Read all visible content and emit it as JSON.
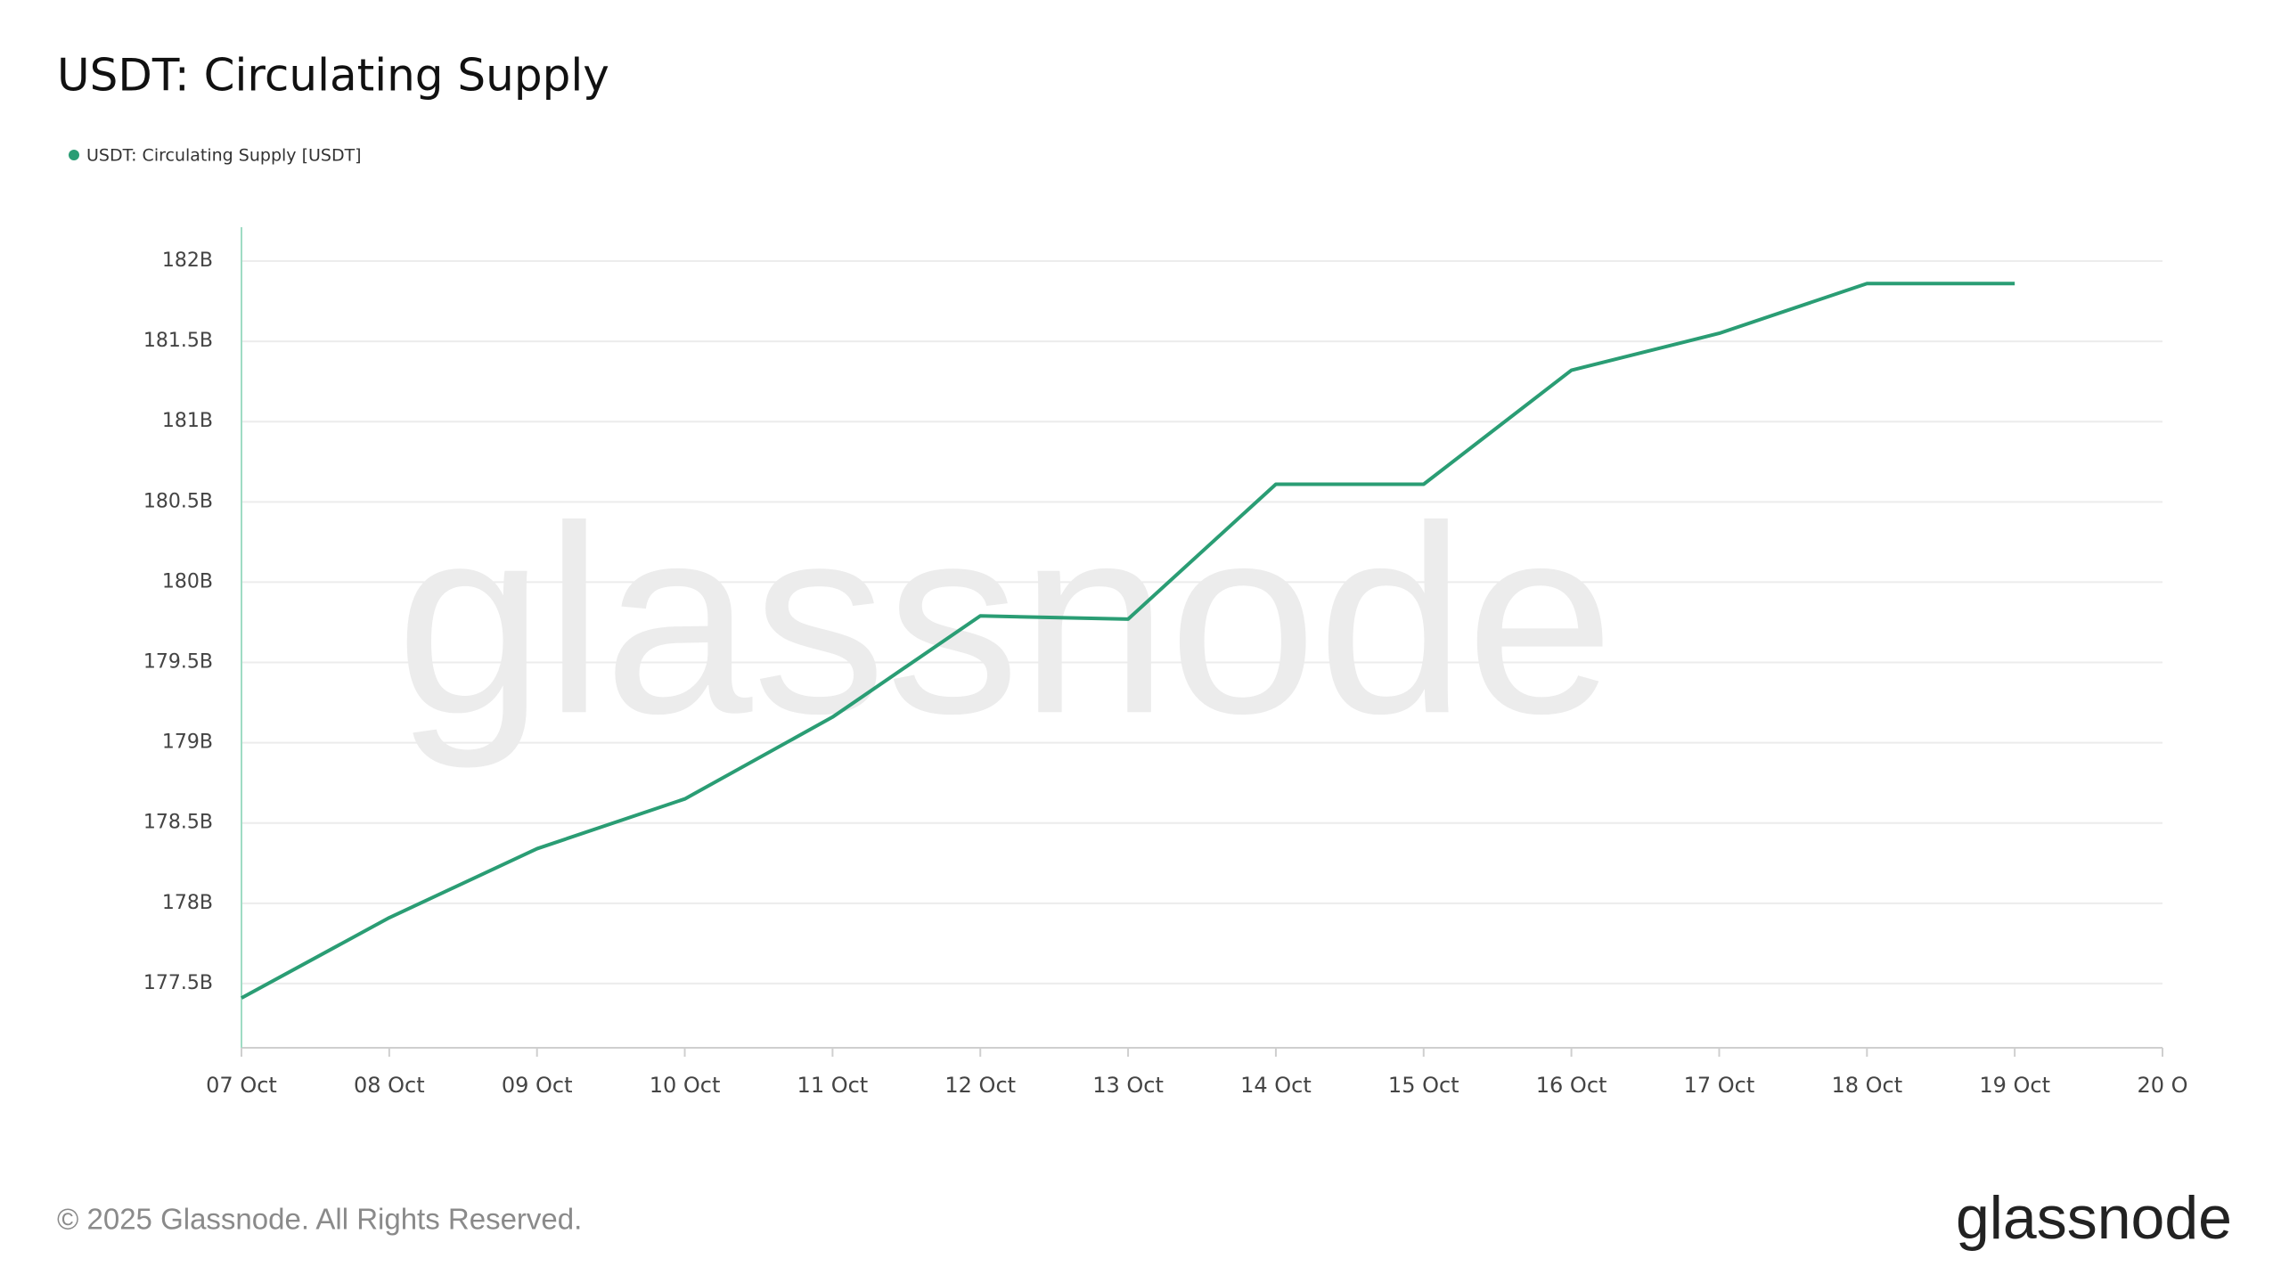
{
  "chart_data": {
    "type": "line",
    "title": "USDT: Circulating Supply",
    "categories": [
      "07 Oct",
      "08 Oct",
      "09 Oct",
      "10 Oct",
      "11 Oct",
      "12 Oct",
      "13 Oct",
      "14 Oct",
      "15 Oct",
      "16 Oct",
      "17 Oct",
      "18 Oct",
      "19 Oct",
      "20 O"
    ],
    "series": [
      {
        "name": "USDT: Circulating Supply [USDT]",
        "color": "#2a9d74",
        "values": [
          177.41,
          177.91,
          178.34,
          178.65,
          179.16,
          179.79,
          179.77,
          180.61,
          180.61,
          181.32,
          181.55,
          181.86,
          181.86,
          null
        ]
      }
    ],
    "ylim": [
      177.1,
      182.1
    ],
    "yticks": [
      {
        "value": 177.5,
        "label": "177.5B"
      },
      {
        "value": 178,
        "label": "178B"
      },
      {
        "value": 178.5,
        "label": "178.5B"
      },
      {
        "value": 179,
        "label": "179B"
      },
      {
        "value": 179.5,
        "label": "179.5B"
      },
      {
        "value": 180,
        "label": "180B"
      },
      {
        "value": 180.5,
        "label": "180.5B"
      },
      {
        "value": 181,
        "label": "181B"
      },
      {
        "value": 181.5,
        "label": "181.5B"
      },
      {
        "value": 182,
        "label": "182B"
      }
    ],
    "grid": true
  },
  "watermark": "glassnode",
  "copyright": "© 2025 Glassnode. All Rights Reserved.",
  "logo": "glassnode"
}
